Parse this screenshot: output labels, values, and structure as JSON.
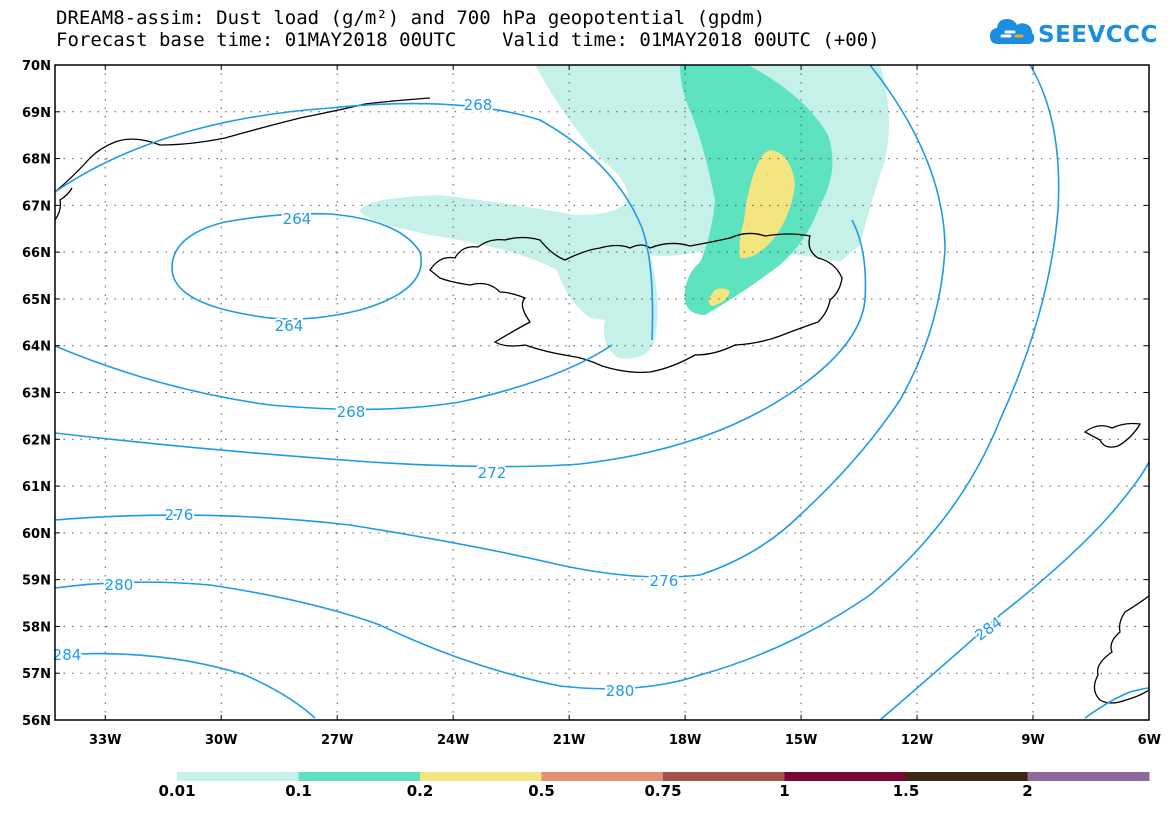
{
  "title": {
    "line1": "DREAM8-assim: Dust load (g/m²) and 700 hPa geopotential (gpdm)",
    "line2": "Forecast base time: 01MAY2018 00UTC    Valid time: 01MAY2018 00UTC (+00)"
  },
  "logo": {
    "text": "SEEVCCC",
    "icon": "cloud-icon",
    "color": "#1a8ee0"
  },
  "map": {
    "lat_labels": [
      "70N",
      "69N",
      "68N",
      "67N",
      "66N",
      "65N",
      "64N",
      "63N",
      "62N",
      "61N",
      "60N",
      "59N",
      "58N",
      "57N",
      "56N"
    ],
    "lon_labels": [
      "33W",
      "30W",
      "27W",
      "24W",
      "21W",
      "18W",
      "15W",
      "12W",
      "9W",
      "6W"
    ],
    "contour_color": "#1e9be8",
    "contour_labels": [
      "268",
      "264",
      "264",
      "268",
      "272",
      "276",
      "276",
      "280",
      "280",
      "284",
      "284"
    ]
  },
  "colorbar": {
    "colors": [
      "#c6f1e8",
      "#5ee3c1",
      "#f4e581",
      "#e59171",
      "#a5524c",
      "#7b0834",
      "#3b2716",
      "#8e699e"
    ],
    "labels": [
      "0.01",
      "0.1",
      "0.2",
      "0.5",
      "0.75",
      "1",
      "1.5",
      "2"
    ]
  }
}
